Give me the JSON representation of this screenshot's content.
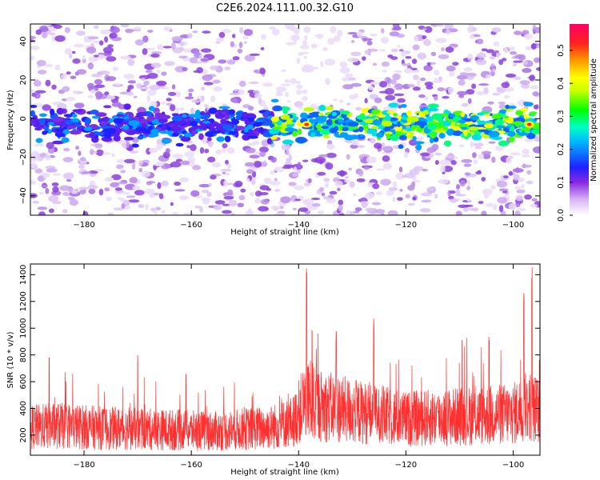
{
  "title": "C2E6.2024.111.00.32.G10",
  "chart_data": [
    {
      "type": "heatmap",
      "xlabel": "Height of straight line (km)",
      "ylabel": "Frequency (Hz)",
      "xlim": [
        -190,
        -95
      ],
      "ylim": [
        -50,
        49
      ],
      "xticks": [
        -180,
        -160,
        -140,
        -120,
        -100
      ],
      "yticks": [
        -40,
        -20,
        0,
        20,
        40
      ],
      "colorbar": {
        "label": "Normalized spectral amplitude",
        "range": [
          0.0,
          0.58
        ],
        "ticks": [
          0.0,
          0.1,
          0.2,
          0.3,
          0.4,
          0.5
        ],
        "colors": [
          "#ffffff",
          "#8a2be2",
          "#0000ff",
          "#00ffff",
          "#00ff00",
          "#ffff00",
          "#ff8c00",
          "#ff0000",
          "#ff0066"
        ]
      },
      "band": {
        "center_hz": -3,
        "halfwidth_hz": 7,
        "brightest_x": [
          -138.5,
          -97
        ]
      }
    },
    {
      "type": "line",
      "xlabel": "Height of straight line (km)",
      "ylabel": "SNR (10 * v/v)",
      "xlim": [
        -190,
        -95
      ],
      "ylim": [
        50,
        1480
      ],
      "xticks": [
        -180,
        -160,
        -140,
        -120,
        -100
      ],
      "yticks": [
        200,
        400,
        600,
        800,
        1000,
        1200,
        1400
      ],
      "color": "#ff3030",
      "profile": [
        {
          "x": -190,
          "y": 260
        },
        {
          "x": -185,
          "y": 270
        },
        {
          "x": -175,
          "y": 250
        },
        {
          "x": -165,
          "y": 240
        },
        {
          "x": -155,
          "y": 230
        },
        {
          "x": -145,
          "y": 260
        },
        {
          "x": -141,
          "y": 300
        },
        {
          "x": -138.5,
          "y": 480
        },
        {
          "x": -136,
          "y": 420
        },
        {
          "x": -130,
          "y": 380
        },
        {
          "x": -125,
          "y": 350
        },
        {
          "x": -120,
          "y": 320
        },
        {
          "x": -115,
          "y": 330
        },
        {
          "x": -110,
          "y": 340
        },
        {
          "x": -105,
          "y": 350
        },
        {
          "x": -100,
          "y": 360
        },
        {
          "x": -97,
          "y": 420
        },
        {
          "x": -95,
          "y": 380
        }
      ],
      "peaks": [
        {
          "x": -138.5,
          "y": 1460
        },
        {
          "x": -137.5,
          "y": 1040
        },
        {
          "x": -126,
          "y": 1090
        },
        {
          "x": -109.5,
          "y": 990
        },
        {
          "x": -104.5,
          "y": 960
        },
        {
          "x": -98,
          "y": 1310
        },
        {
          "x": -96.5,
          "y": 1470
        },
        {
          "x": -186.5,
          "y": 840
        },
        {
          "x": -170,
          "y": 820
        },
        {
          "x": -161,
          "y": 720
        },
        {
          "x": -133,
          "y": 1000
        }
      ]
    }
  ]
}
